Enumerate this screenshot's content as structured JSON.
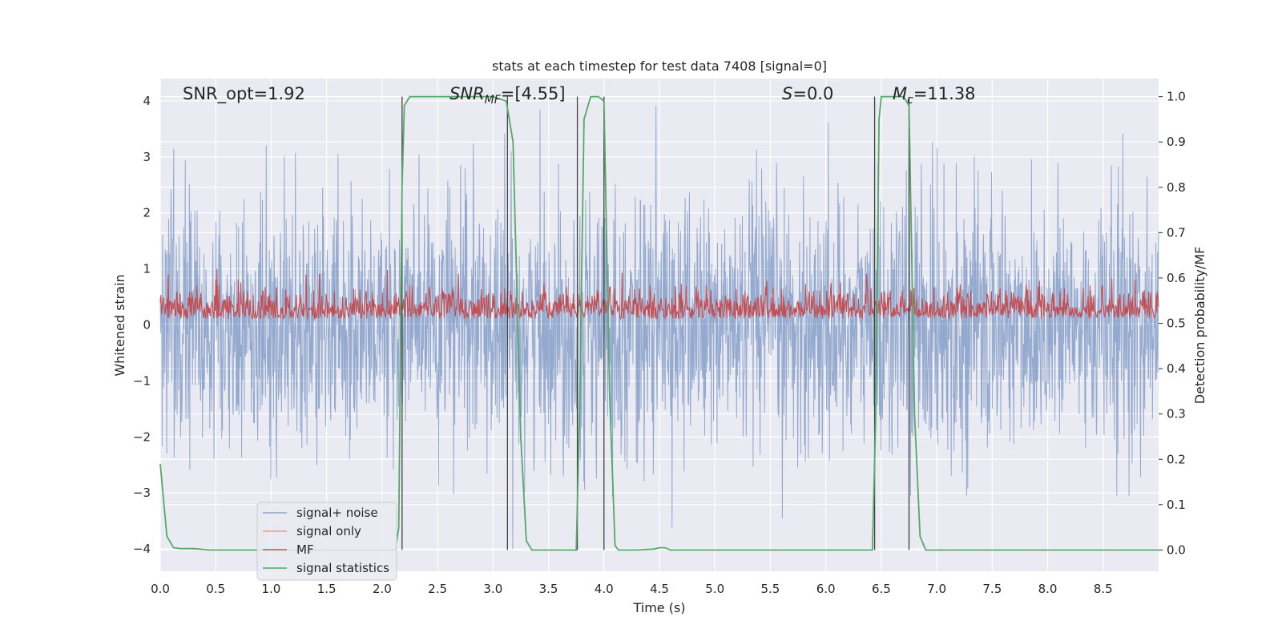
{
  "chart_data": {
    "type": "line",
    "title": "stats at each timestep for test data 7408 [signal=0]",
    "xlabel": "Time (s)",
    "ylabel": "Whitened strain",
    "y2label": "Detection probability/MF",
    "xlim": [
      0,
      9.0
    ],
    "ylim": [
      -4.4,
      4.4
    ],
    "y2lim": [
      -0.047,
      1.04
    ],
    "xticks": [
      "0.0",
      "0.5",
      "1.0",
      "1.5",
      "2.0",
      "2.5",
      "3.0",
      "3.5",
      "4.0",
      "4.5",
      "5.0",
      "5.5",
      "6.0",
      "6.5",
      "7.0",
      "7.5",
      "8.0",
      "8.5"
    ],
    "yticks": [
      "−4",
      "−3",
      "−2",
      "−1",
      "0",
      "1",
      "2",
      "3",
      "4"
    ],
    "y2ticks": [
      "0.0",
      "0.1",
      "0.2",
      "0.3",
      "0.4",
      "0.5",
      "0.6",
      "0.7",
      "0.8",
      "0.9",
      "1.0"
    ],
    "annotations": {
      "snr_opt": "SNR_opt=1.92",
      "snr_mf_main": "SNR",
      "snr_mf_sub": "MF",
      "snr_mf_value": "=[4.55]",
      "s_main": "S",
      "s_value": "=0.0",
      "mc_main": "M",
      "mc_sub": "c",
      "mc_value": "=11.38"
    },
    "legend": {
      "placement": "lower-left",
      "entries": [
        {
          "label": "signal+ noise",
          "color": "#4c72b0"
        },
        {
          "label": "signal only",
          "color": "#dd8452"
        },
        {
          "label": "MF",
          "color": "#c44e52"
        },
        {
          "label": "signal statistics",
          "color": "#55a868"
        }
      ]
    },
    "series": [
      {
        "name": "signal statistics",
        "axis": "right",
        "color": "#55a868",
        "x": [
          0.0,
          0.06,
          0.12,
          0.18,
          0.3,
          0.45,
          1.0,
          1.5,
          2.0,
          2.12,
          2.15,
          2.18,
          2.2,
          2.25,
          2.3,
          2.5,
          3.0,
          3.12,
          3.18,
          3.25,
          3.3,
          3.35,
          3.4,
          3.5,
          3.6,
          3.7,
          3.75,
          3.78,
          3.82,
          3.88,
          3.95,
          4.0,
          4.05,
          4.1,
          4.13,
          4.2,
          4.3,
          4.45,
          4.5,
          4.55,
          4.6,
          5.0,
          5.5,
          6.0,
          6.3,
          6.42,
          6.45,
          6.48,
          6.5,
          6.6,
          6.7,
          6.75,
          6.8,
          6.85,
          6.9,
          7.0,
          8.0,
          8.5,
          9.0
        ],
        "y": [
          0.19,
          0.03,
          0.005,
          0.003,
          0.003,
          0.0,
          0.0,
          0.0,
          0.0,
          0.0,
          0.05,
          0.8,
          0.98,
          1.0,
          1.0,
          1.0,
          1.0,
          0.99,
          0.9,
          0.25,
          0.02,
          0.0,
          0.0,
          0.0,
          0.0,
          0.0,
          0.0,
          0.3,
          0.95,
          1.0,
          1.0,
          0.99,
          0.35,
          0.01,
          0.0,
          0.0,
          0.0,
          0.002,
          0.005,
          0.005,
          0.0,
          0.0,
          0.0,
          0.0,
          0.0,
          0.0,
          0.3,
          0.95,
          1.0,
          1.0,
          1.0,
          0.98,
          0.3,
          0.03,
          0.0,
          0.0,
          0.0,
          0.0,
          0.0
        ]
      },
      {
        "name": "signal+ noise",
        "axis": "left",
        "color": "#4c72b0",
        "style": "dense noise approx. ±4"
      },
      {
        "name": "MF",
        "axis": "right",
        "color": "#c44e52",
        "style": "dense noise between 0.5 and 0.62"
      }
    ],
    "vlines": [
      2.18,
      3.13,
      3.76,
      4.0,
      6.44,
      6.75
    ],
    "colors": {
      "background": "#eaeaf2",
      "grid": "#ffffff",
      "vline": "#404040"
    }
  }
}
